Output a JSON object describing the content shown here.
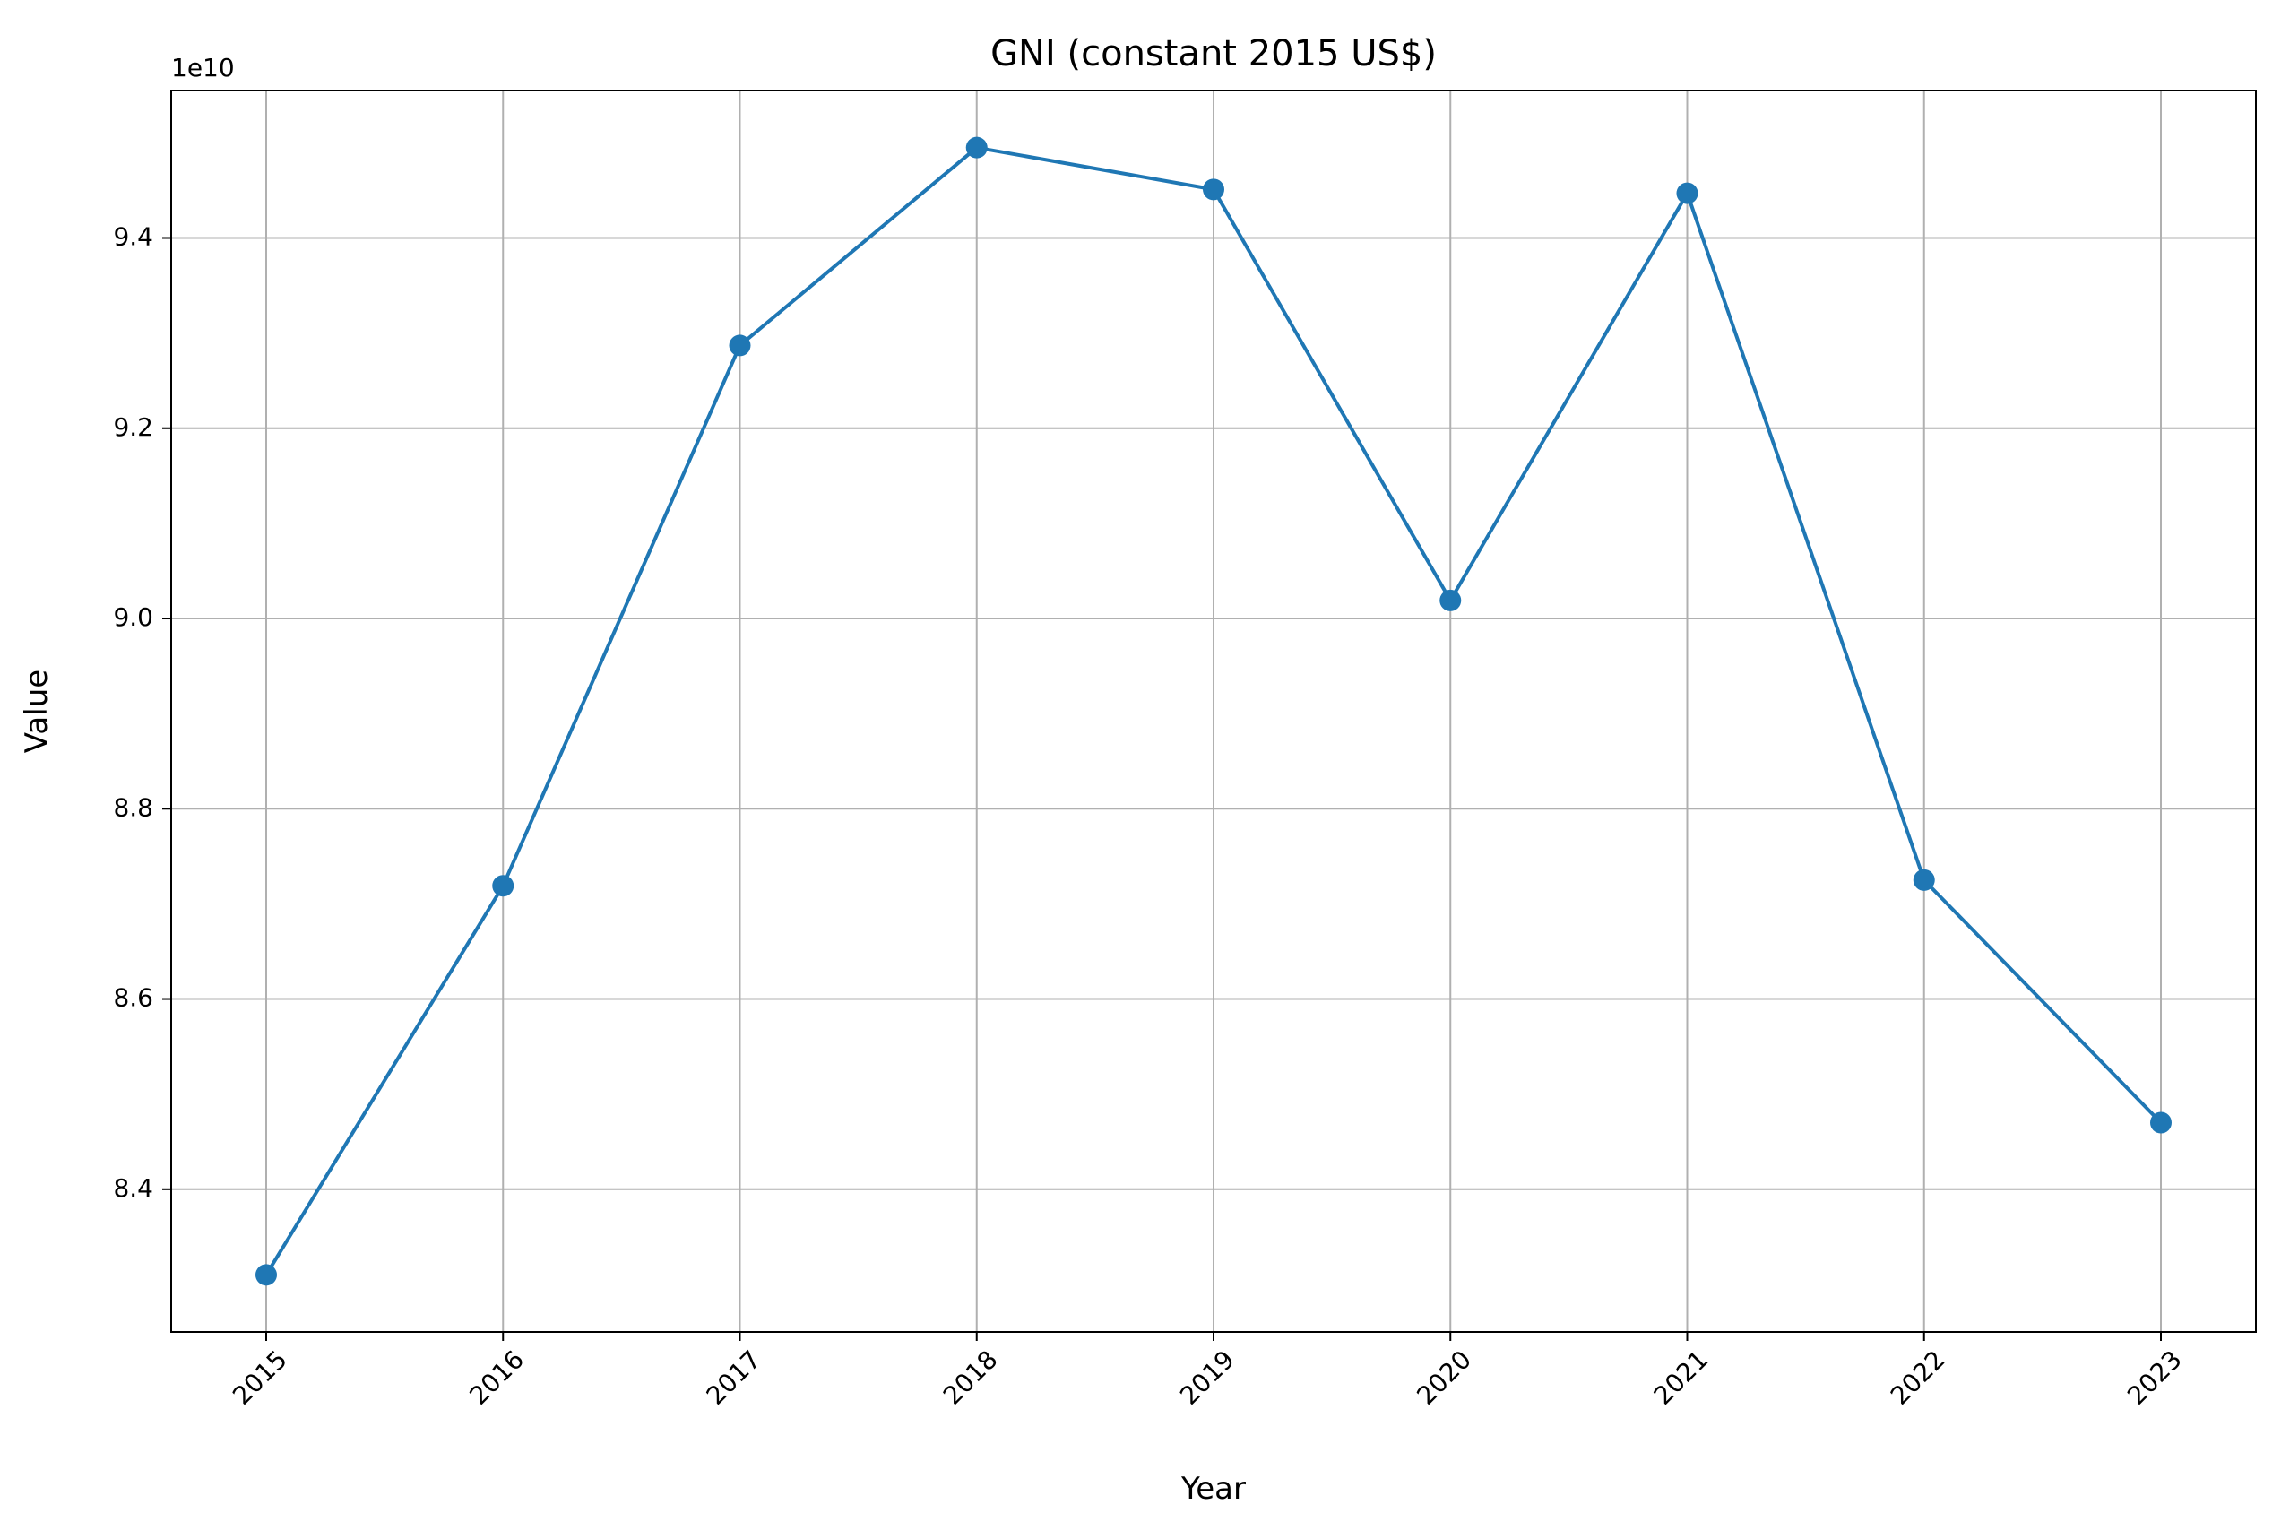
{
  "chart_data": {
    "type": "line",
    "title": "GNI (constant 2015 US$)",
    "xlabel": "Year",
    "ylabel": "Value",
    "y_offset_label": "1e10",
    "x": [
      "2015",
      "2016",
      "2017",
      "2018",
      "2019",
      "2020",
      "2021",
      "2022",
      "2023"
    ],
    "series": [
      {
        "values": [
          83100000000,
          87190000000,
          92870000000,
          94950000000,
          94510000000,
          90190000000,
          94470000000,
          87250000000,
          84700000000
        ],
        "color": "#1f77b4"
      }
    ],
    "yticks": [
      8.4,
      8.6,
      8.8,
      9.0,
      9.2,
      9.4
    ],
    "ytick_labels": [
      "8.4",
      "8.6",
      "8.8",
      "9.0",
      "9.2",
      "9.4"
    ],
    "ylim": [
      82500000000,
      95550000000
    ],
    "grid": true,
    "legend": "none"
  }
}
